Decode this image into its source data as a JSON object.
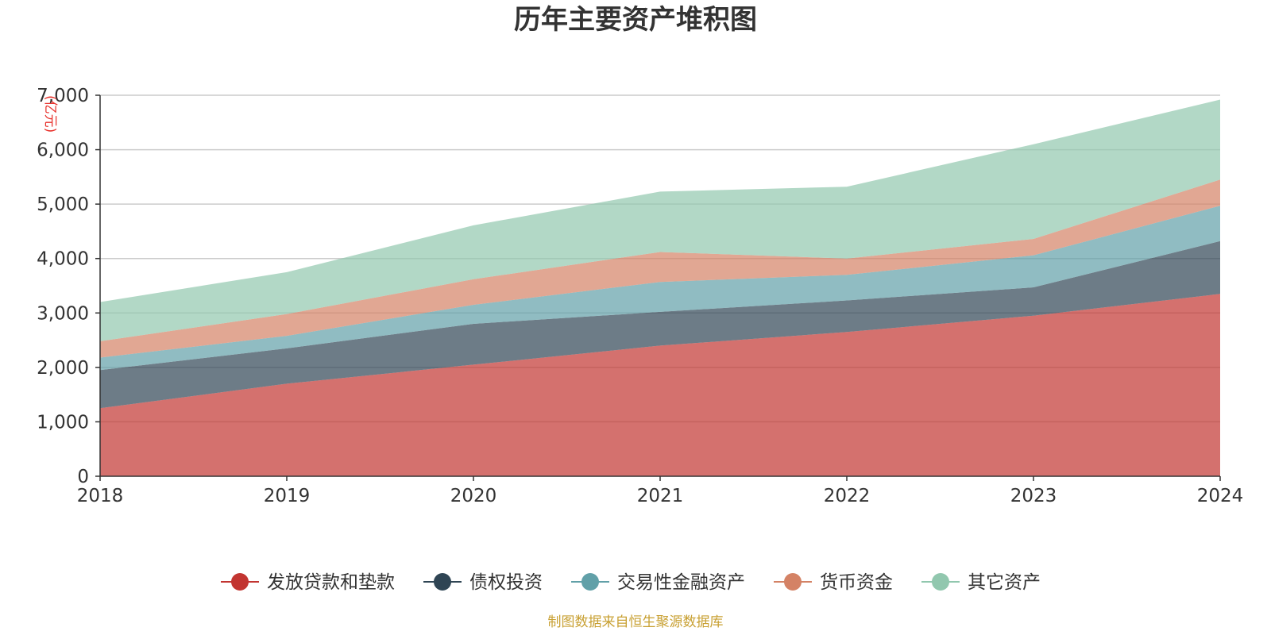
{
  "colors": {
    "title": "#333333",
    "axis": "#333333",
    "grid": "#cccccc",
    "unit": "#e8322c",
    "source": "#c8a032"
  },
  "source_text": "制图数据来自恒生聚源数据库",
  "chart_data": {
    "type": "area",
    "stacked": true,
    "title": "历年主要资产堆积图",
    "xlabel": "",
    "ylabel": "(亿元)",
    "ylim": [
      0,
      7000
    ],
    "yticks": [
      0,
      1000,
      2000,
      3000,
      4000,
      5000,
      6000,
      7000
    ],
    "ytick_labels": [
      "0",
      "1,000",
      "2,000",
      "3,000",
      "4,000",
      "5,000",
      "6,000",
      "7,000"
    ],
    "grid": true,
    "legend_position": "bottom-center",
    "categories": [
      "2018",
      "2019",
      "2020",
      "2021",
      "2022",
      "2023",
      "2024"
    ],
    "series": [
      {
        "name": "发放贷款和垫款",
        "color": "#c23531",
        "values": [
          1250,
          1700,
          2050,
          2400,
          2650,
          2950,
          3350
        ]
      },
      {
        "name": "债权投资",
        "color": "#2f4554",
        "values": [
          700,
          650,
          750,
          620,
          580,
          520,
          970
        ]
      },
      {
        "name": "交易性金融资产",
        "color": "#61a0a8",
        "values": [
          230,
          230,
          350,
          550,
          470,
          590,
          650
        ]
      },
      {
        "name": "货币资金",
        "color": "#d48265",
        "values": [
          300,
          400,
          470,
          550,
          300,
          300,
          480
        ]
      },
      {
        "name": "其它资产",
        "color": "#91c7ae",
        "values": [
          720,
          770,
          990,
          1110,
          1320,
          1740,
          1470
        ]
      }
    ]
  }
}
